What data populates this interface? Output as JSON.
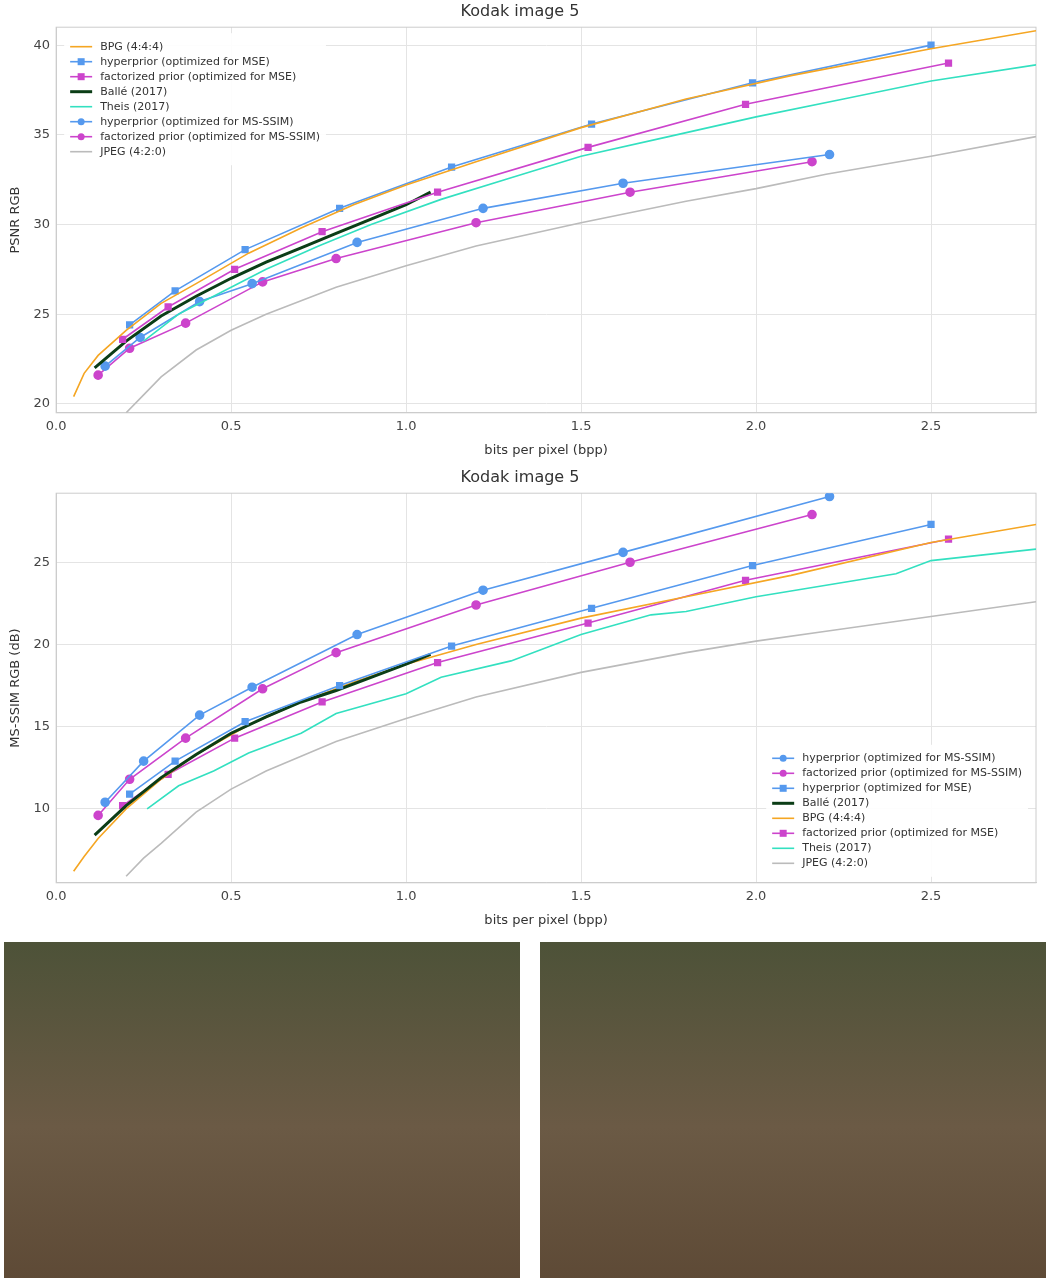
{
  "chart_data": [
    {
      "type": "line",
      "title": "Kodak image 5",
      "x_label": "bits per pixel (bpp)",
      "y_label": "PSNR RGB",
      "xlim": [
        0,
        2.8
      ],
      "xticks": [
        {
          "value": 0,
          "label": "0.0"
        },
        0.5,
        {
          "value": 1,
          "label": "1.0"
        },
        1.5,
        {
          "value": 2,
          "label": "2.0"
        },
        2.5
      ],
      "ylim": [
        19.5,
        41
      ],
      "yticks": [
        20,
        25,
        30,
        35,
        40
      ],
      "grid": true,
      "legend": "upper left",
      "series": [
        {
          "name": "BPG (4:4:4)",
          "color": "#f5a623",
          "x": [
            0.05,
            0.08,
            0.12,
            0.2,
            0.3,
            0.4,
            0.55,
            0.7,
            0.85,
            1.0,
            1.2,
            1.5,
            1.8,
            2.1,
            2.5,
            2.8
          ],
          "values": [
            20.4,
            21.7,
            22.7,
            24.1,
            25.6,
            26.7,
            28.4,
            29.8,
            31.1,
            32.2,
            33.5,
            35.4,
            37.0,
            38.3,
            39.8,
            40.8
          ]
        },
        {
          "name": "hyperprior (optimized for MSE)",
          "color": "#5599ee",
          "marker": "square",
          "x": [
            0.21,
            0.34,
            0.54,
            0.81,
            1.13,
            1.53,
            1.99,
            2.5
          ],
          "values": [
            24.4,
            26.3,
            28.6,
            30.9,
            33.2,
            35.6,
            37.9,
            40.0
          ]
        },
        {
          "name": "factorized prior (optimized for MSE)",
          "color": "#cc44cc",
          "marker": "square",
          "x": [
            0.19,
            0.32,
            0.51,
            0.76,
            1.09,
            1.52,
            1.97,
            2.55
          ],
          "values": [
            23.6,
            25.4,
            27.5,
            29.6,
            31.8,
            34.3,
            36.7,
            39.0
          ]
        },
        {
          "name": "Ballé (2017)",
          "color": "#0b3d16",
          "line_style": "bold",
          "x": [
            0.11,
            0.2,
            0.3,
            0.4,
            0.5,
            0.6,
            0.7,
            0.8,
            0.9,
            1.0,
            1.07
          ],
          "values": [
            22.0,
            23.5,
            24.9,
            26.0,
            27.0,
            27.9,
            28.7,
            29.5,
            30.3,
            31.1,
            31.8
          ]
        },
        {
          "name": "Theis (2017)",
          "color": "#33e0c0",
          "x": [
            0.25,
            0.35,
            0.5,
            0.6,
            0.75,
            0.9,
            1.1,
            1.3,
            1.5,
            1.75,
            2.0,
            2.25,
            2.5,
            2.8
          ],
          "values": [
            23.5,
            25.0,
            26.5,
            27.5,
            28.8,
            30.0,
            31.4,
            32.6,
            33.8,
            34.9,
            36.0,
            37.0,
            38.0,
            38.9
          ]
        },
        {
          "name": "hyperprior (optimized for MS-SSIM)",
          "color": "#5599ee",
          "marker": "circle",
          "x": [
            0.14,
            0.24,
            0.41,
            0.56,
            0.86,
            1.22,
            1.62,
            2.21
          ],
          "values": [
            22.1,
            23.7,
            25.7,
            26.7,
            29.0,
            30.9,
            32.3,
            33.9
          ]
        },
        {
          "name": "factorized prior (optimized for MS-SSIM)",
          "color": "#cc44cc",
          "marker": "circle",
          "x": [
            0.12,
            0.21,
            0.37,
            0.59,
            0.8,
            1.2,
            1.64,
            2.16
          ],
          "values": [
            21.6,
            23.1,
            24.5,
            26.8,
            28.1,
            30.1,
            31.8,
            33.5
          ]
        },
        {
          "name": "JPEG (4:2:0)",
          "color": "#bbbbbb",
          "x": [
            0.2,
            0.25,
            0.3,
            0.4,
            0.5,
            0.6,
            0.8,
            1.0,
            1.2,
            1.5,
            1.8,
            2.0,
            2.2,
            2.5,
            2.8
          ],
          "values": [
            19.5,
            20.5,
            21.5,
            23.0,
            24.1,
            25.0,
            26.5,
            27.7,
            28.8,
            30.1,
            31.3,
            32.0,
            32.8,
            33.8,
            34.9
          ]
        }
      ]
    },
    {
      "type": "line",
      "title": "Kodak image 5",
      "x_label": "bits per pixel (bpp)",
      "y_label": "MS-SSIM RGB (dB)",
      "xlim": [
        0,
        2.8
      ],
      "xticks": [
        {
          "value": 0,
          "label": "0.0"
        },
        0.5,
        {
          "value": 1,
          "label": "1.0"
        },
        1.5,
        {
          "value": 2,
          "label": "2.0"
        },
        2.5
      ],
      "ylim": [
        5.5,
        29.2
      ],
      "yticks": [
        10,
        15,
        20,
        25
      ],
      "grid": true,
      "legend": "lower right",
      "series": [
        {
          "name": "hyperprior (optimized for MS-SSIM)",
          "color": "#5599ee",
          "marker": "circle",
          "x": [
            0.14,
            0.25,
            0.41,
            0.56,
            0.86,
            1.22,
            1.62,
            2.21
          ],
          "values": [
            10.4,
            12.9,
            15.7,
            17.4,
            20.6,
            23.3,
            25.6,
            29.0
          ]
        },
        {
          "name": "factorized prior (optimized for MS-SSIM)",
          "color": "#cc44cc",
          "marker": "circle",
          "x": [
            0.12,
            0.21,
            0.37,
            0.59,
            0.8,
            1.2,
            1.64,
            2.16
          ],
          "values": [
            9.6,
            11.8,
            14.3,
            17.3,
            19.5,
            22.4,
            25.0,
            27.9
          ]
        },
        {
          "name": "hyperprior (optimized for MSE)",
          "color": "#5599ee",
          "marker": "square",
          "x": [
            0.21,
            0.34,
            0.54,
            0.81,
            1.13,
            1.53,
            1.99,
            2.5
          ],
          "values": [
            10.9,
            12.9,
            15.3,
            17.5,
            19.9,
            22.2,
            24.8,
            27.3
          ]
        },
        {
          "name": "Ballé (2017)",
          "color": "#0b3d16",
          "line_style": "bold",
          "x": [
            0.11,
            0.2,
            0.3,
            0.4,
            0.5,
            0.6,
            0.7,
            0.8,
            0.9,
            1.0,
            1.07
          ],
          "values": [
            8.4,
            10.2,
            11.9,
            13.3,
            14.6,
            15.6,
            16.5,
            17.2,
            18.0,
            18.8,
            19.4
          ]
        },
        {
          "name": "BPG (4:4:4)",
          "color": "#f5a623",
          "x": [
            0.05,
            0.08,
            0.12,
            0.2,
            0.3,
            0.4,
            0.55,
            0.7,
            0.85,
            1.0,
            1.2,
            1.5,
            1.8,
            2.1,
            2.5,
            2.8
          ],
          "values": [
            6.2,
            7.1,
            8.2,
            10.0,
            11.8,
            13.3,
            15.1,
            16.5,
            17.7,
            18.8,
            20.0,
            21.6,
            22.9,
            24.2,
            26.2,
            27.3
          ]
        },
        {
          "name": "factorized prior (optimized for MSE)",
          "color": "#cc44cc",
          "marker": "square",
          "x": [
            0.19,
            0.32,
            0.51,
            0.76,
            1.09,
            1.52,
            1.97,
            2.55
          ],
          "values": [
            10.2,
            12.1,
            14.3,
            16.5,
            18.9,
            21.3,
            23.9,
            26.4
          ]
        },
        {
          "name": "Theis (2017)",
          "color": "#33e0c0",
          "x": [
            0.26,
            0.35,
            0.45,
            0.55,
            0.7,
            0.8,
            1.0,
            1.1,
            1.3,
            1.5,
            1.7,
            1.8,
            2.0,
            2.2,
            2.4,
            2.5,
            2.8
          ],
          "values": [
            10.0,
            11.4,
            12.3,
            13.4,
            14.6,
            15.8,
            17.0,
            18.0,
            19.0,
            20.6,
            21.8,
            22.0,
            22.9,
            23.6,
            24.3,
            25.1,
            25.8
          ]
        },
        {
          "name": "JPEG (4:2:0)",
          "color": "#bbbbbb",
          "x": [
            0.2,
            0.25,
            0.3,
            0.4,
            0.5,
            0.6,
            0.8,
            1.0,
            1.2,
            1.5,
            1.8,
            2.0,
            2.2,
            2.5,
            2.8
          ],
          "values": [
            5.9,
            7.0,
            7.9,
            9.8,
            11.2,
            12.3,
            14.1,
            15.5,
            16.8,
            18.3,
            19.5,
            20.2,
            20.8,
            21.7,
            22.6
          ]
        }
      ]
    }
  ]
}
